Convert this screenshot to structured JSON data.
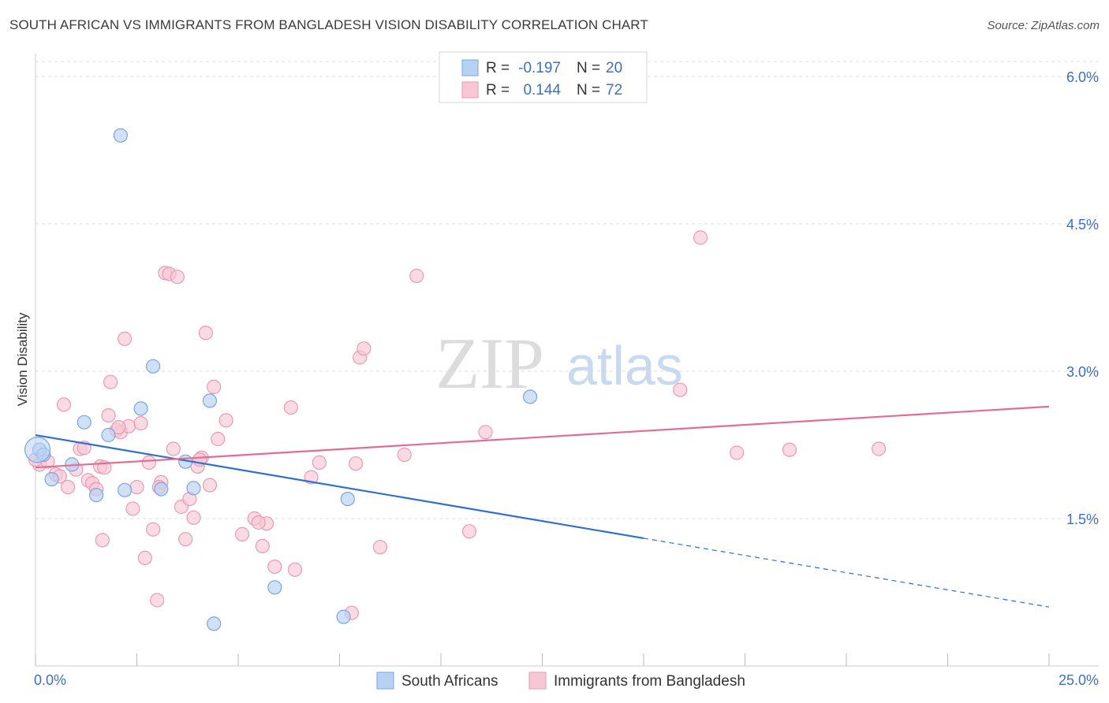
{
  "title": "SOUTH AFRICAN VS IMMIGRANTS FROM BANGLADESH VISION DISABILITY CORRELATION CHART",
  "source": "Source: ZipAtlas.com",
  "watermark": {
    "zip": "ZIP",
    "atlas": "atlas"
  },
  "colors": {
    "blue_fill": "#b7d1f2",
    "blue_stroke": "#7aa6e0",
    "blue_line": "#2f6fd0",
    "pink_fill": "#f8c7d6",
    "pink_stroke": "#eb9ab4",
    "pink_line": "#e36c96",
    "axis_label": "#3d6fc4",
    "grid": "#dddddd"
  },
  "legend": {
    "rows": [
      {
        "r_label": "R =",
        "r_value": "-0.197",
        "n_label": "N =",
        "n_value": "20",
        "color": "blue"
      },
      {
        "r_label": "R =",
        "r_value": "0.144",
        "n_label": "N =",
        "n_value": "72",
        "color": "pink"
      }
    ]
  },
  "chart_data": {
    "type": "scatter",
    "title": "SOUTH AFRICAN VS IMMIGRANTS FROM BANGLADESH VISION DISABILITY CORRELATION CHART",
    "xlabel": "",
    "ylabel": "Vision Disability",
    "xlim": [
      0,
      25
    ],
    "ylim": [
      0,
      6.0
    ],
    "x_tick_labels": [
      "0.0%",
      "25.0%"
    ],
    "y_ticks": [
      1.5,
      3.0,
      4.5,
      6.0
    ],
    "y_tick_labels": [
      "1.5%",
      "3.0%",
      "4.5%",
      "6.0%"
    ],
    "grid": true,
    "legend_position": "top-center",
    "series": [
      {
        "name": "South Africans",
        "color": "blue",
        "trend": {
          "x": [
            0,
            15,
            25
          ],
          "y": [
            2.35,
            1.3,
            0.6
          ],
          "solid_until": 15
        },
        "points": [
          [
            0.1,
            2.2
          ],
          [
            0.4,
            1.9
          ],
          [
            0.9,
            2.05
          ],
          [
            1.2,
            2.48
          ],
          [
            1.5,
            1.74
          ],
          [
            1.8,
            2.35
          ],
          [
            2.1,
            5.4
          ],
          [
            2.2,
            1.79
          ],
          [
            2.6,
            2.62
          ],
          [
            2.9,
            3.05
          ],
          [
            3.1,
            1.8
          ],
          [
            3.7,
            2.08
          ],
          [
            3.9,
            1.81
          ],
          [
            4.3,
            2.7
          ],
          [
            4.4,
            0.43
          ],
          [
            5.9,
            0.8
          ],
          [
            7.6,
            0.5
          ],
          [
            7.7,
            1.7
          ],
          [
            12.2,
            2.74
          ],
          [
            0.2,
            2.15
          ]
        ]
      },
      {
        "name": "Immigrants from Bangladesh",
        "color": "pink",
        "trend": {
          "x": [
            0,
            25
          ],
          "y": [
            2.02,
            2.64
          ]
        },
        "points": [
          [
            0.1,
            2.05
          ],
          [
            0.3,
            2.08
          ],
          [
            0.5,
            1.95
          ],
          [
            0.7,
            2.66
          ],
          [
            0.8,
            1.82
          ],
          [
            1.0,
            2.0
          ],
          [
            1.1,
            2.21
          ],
          [
            1.2,
            2.22
          ],
          [
            1.3,
            1.89
          ],
          [
            1.4,
            1.86
          ],
          [
            1.5,
            1.8
          ],
          [
            1.6,
            2.03
          ],
          [
            1.65,
            1.28
          ],
          [
            1.8,
            2.55
          ],
          [
            1.85,
            2.89
          ],
          [
            2.0,
            2.4
          ],
          [
            2.1,
            2.38
          ],
          [
            2.2,
            3.33
          ],
          [
            2.3,
            2.44
          ],
          [
            2.4,
            1.6
          ],
          [
            2.5,
            1.82
          ],
          [
            2.6,
            2.47
          ],
          [
            2.7,
            1.1
          ],
          [
            2.8,
            2.07
          ],
          [
            2.9,
            1.39
          ],
          [
            3.0,
            0.67
          ],
          [
            3.1,
            1.87
          ],
          [
            3.2,
            4.0
          ],
          [
            3.3,
            3.99
          ],
          [
            3.4,
            2.21
          ],
          [
            3.5,
            3.96
          ],
          [
            3.6,
            1.62
          ],
          [
            3.7,
            1.29
          ],
          [
            3.8,
            1.7
          ],
          [
            3.9,
            1.51
          ],
          [
            4.0,
            2.03
          ],
          [
            4.1,
            2.12
          ],
          [
            4.2,
            3.39
          ],
          [
            4.3,
            1.84
          ],
          [
            4.4,
            2.84
          ],
          [
            4.5,
            2.31
          ],
          [
            4.7,
            2.5
          ],
          [
            5.1,
            1.34
          ],
          [
            5.4,
            1.5
          ],
          [
            5.6,
            1.22
          ],
          [
            5.7,
            1.45
          ],
          [
            5.9,
            1.01
          ],
          [
            6.3,
            2.63
          ],
          [
            6.4,
            0.98
          ],
          [
            6.8,
            1.92
          ],
          [
            7.0,
            2.07
          ],
          [
            7.8,
            0.54
          ],
          [
            7.9,
            2.06
          ],
          [
            8.0,
            3.14
          ],
          [
            8.1,
            3.23
          ],
          [
            8.5,
            1.21
          ],
          [
            9.4,
            3.97
          ],
          [
            9.1,
            2.15
          ],
          [
            11.1,
            2.38
          ],
          [
            10.7,
            1.37
          ],
          [
            15.9,
            2.81
          ],
          [
            16.4,
            4.36
          ],
          [
            17.3,
            2.17
          ],
          [
            18.6,
            2.2
          ],
          [
            20.8,
            2.21
          ],
          [
            0.0,
            2.1
          ],
          [
            0.6,
            1.93
          ],
          [
            1.7,
            2.02
          ],
          [
            2.05,
            2.43
          ],
          [
            3.05,
            1.82
          ],
          [
            4.05,
            2.1
          ],
          [
            5.5,
            1.46
          ]
        ]
      }
    ]
  }
}
